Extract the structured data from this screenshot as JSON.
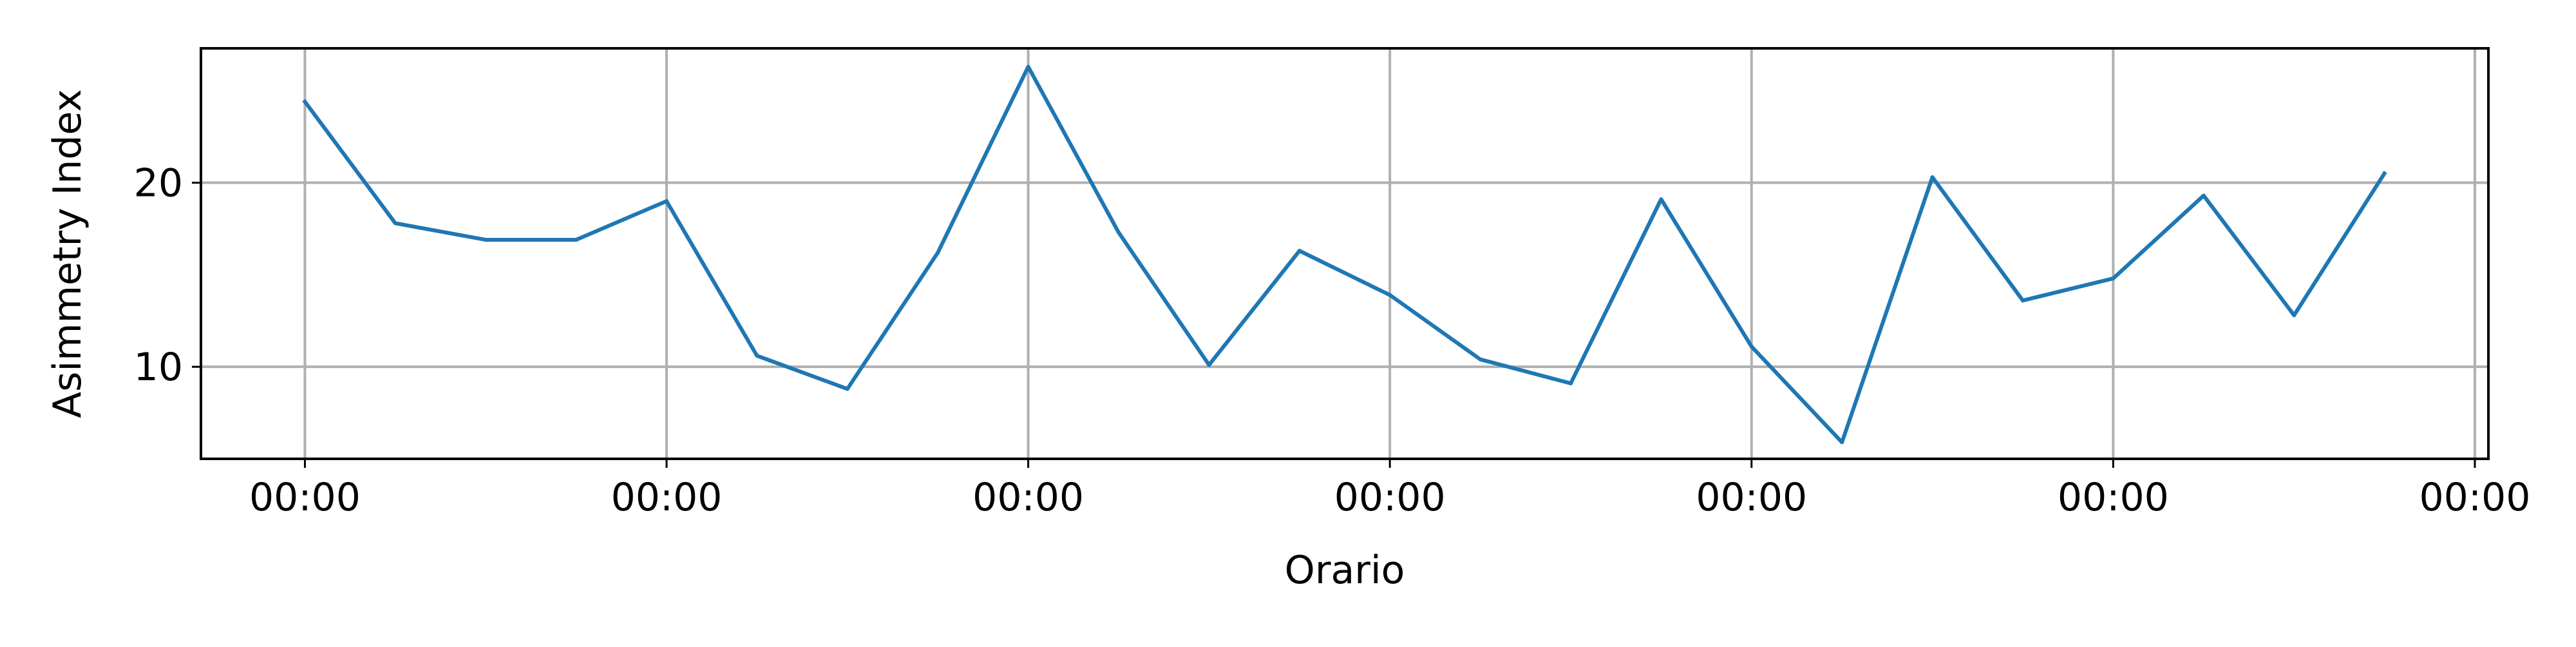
{
  "chart_data": {
    "type": "line",
    "title": "",
    "xlabel": "Orario",
    "ylabel": "Asimmetry Index",
    "grid": true,
    "legend": "none",
    "x_ticks": [
      0,
      4,
      8,
      12,
      16,
      20,
      24
    ],
    "x_tick_labels": [
      "00:00",
      "00:00",
      "00:00",
      "00:00",
      "00:00",
      "00:00",
      "00:00"
    ],
    "xlim": [
      -1.15,
      24.15
    ],
    "y_ticks": [
      10,
      20
    ],
    "y_tick_labels": [
      "10",
      "20"
    ],
    "ylim": [
      5.0,
      27.3
    ],
    "x": [
      0,
      1,
      2,
      3,
      4,
      5,
      6,
      7,
      8,
      9,
      10,
      11,
      12,
      13,
      14,
      15,
      16,
      17,
      18,
      19,
      20,
      21,
      22,
      23
    ],
    "series": [
      {
        "color": "#1f77b4",
        "values": [
          24.4,
          17.8,
          16.9,
          16.9,
          19.0,
          10.6,
          8.8,
          16.2,
          26.3,
          17.3,
          10.1,
          16.3,
          13.9,
          10.4,
          9.1,
          19.1,
          11.1,
          5.9,
          20.3,
          13.6,
          14.8,
          19.3,
          12.8,
          20.5
        ]
      }
    ]
  }
}
